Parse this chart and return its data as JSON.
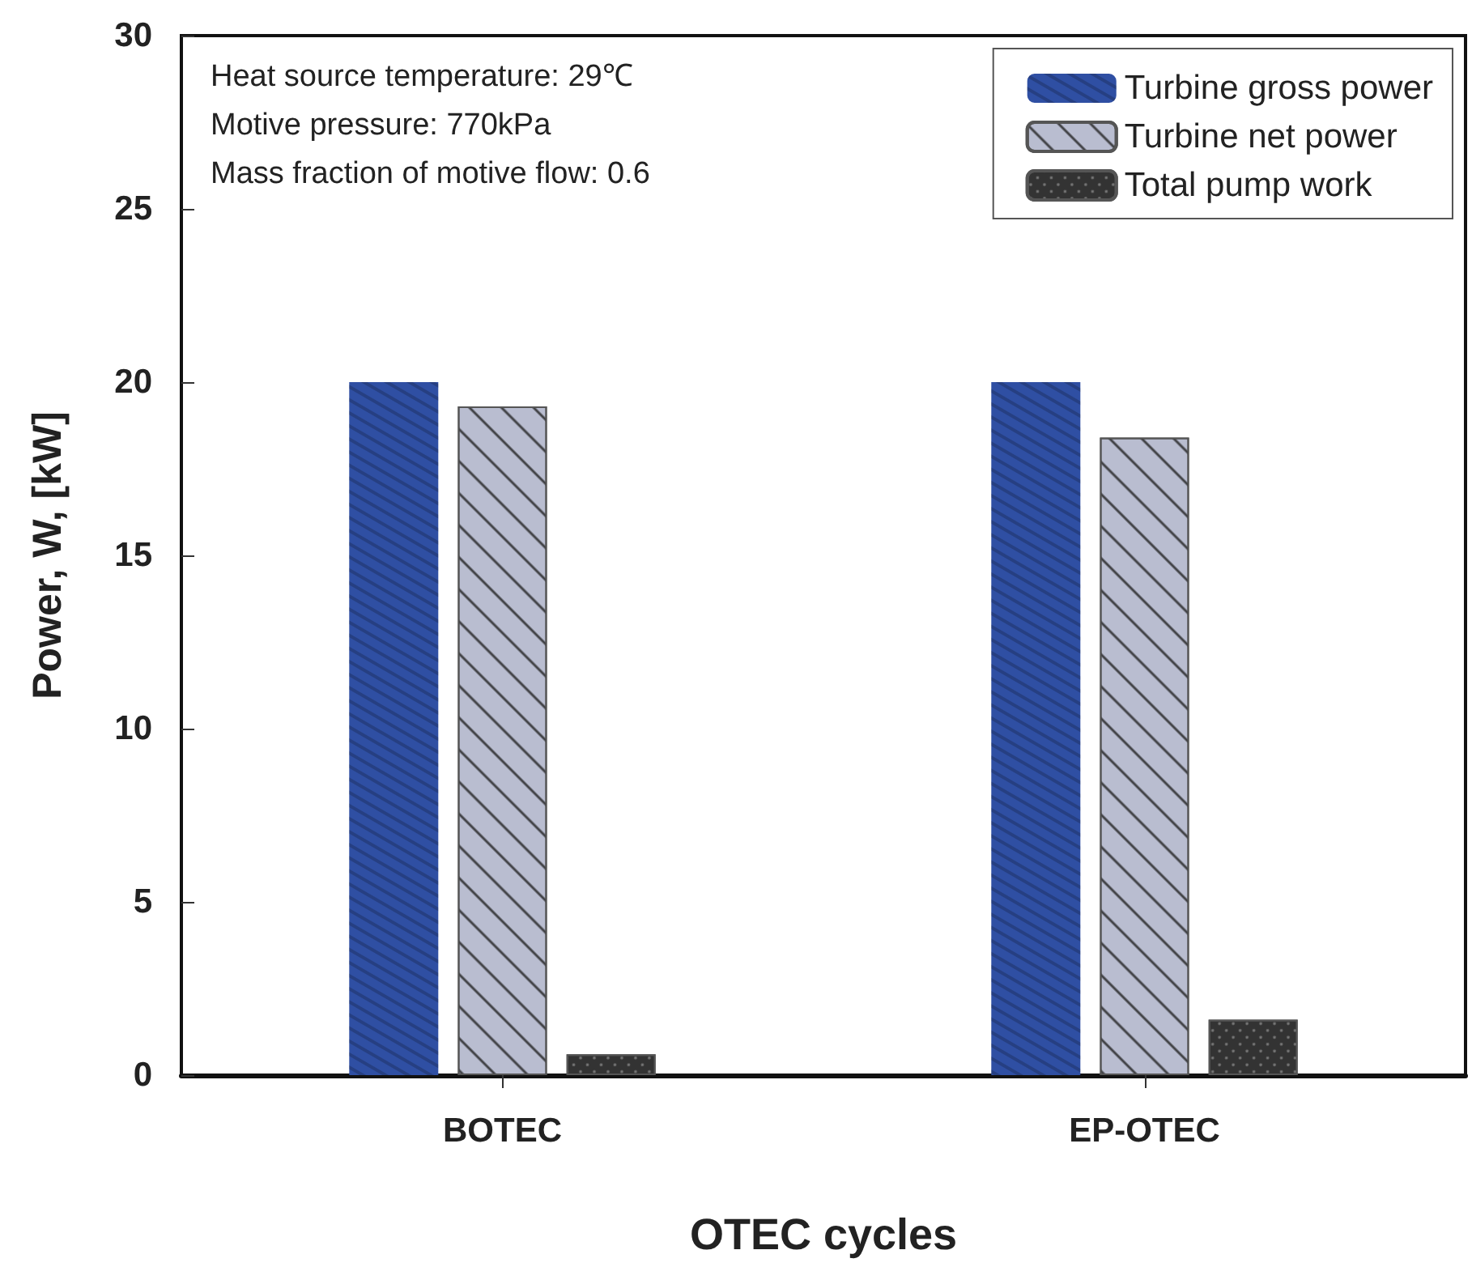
{
  "chart_data": {
    "type": "bar",
    "xlabel": "OTEC cycles",
    "ylabel": "Power, W, [kW]",
    "categories": [
      "BOTEC",
      "EP-OTEC"
    ],
    "series": [
      {
        "name": "Turbine gross power",
        "color": "#2f4fa3",
        "values": [
          20.0,
          20.0
        ]
      },
      {
        "name": "Turbine net power",
        "color": "#b9bdd0",
        "values": [
          19.3,
          18.4
        ]
      },
      {
        "name": "Total pump work",
        "color": "#333333",
        "values": [
          0.6,
          1.6
        ]
      }
    ],
    "ylim": [
      0,
      30
    ],
    "yticks": [
      0,
      5,
      10,
      15,
      20,
      25,
      30
    ],
    "grid": false,
    "legend": "top right",
    "annotations": [
      "Heat source temperature: 29℃",
      "Motive pressure: 770kPa",
      "Mass fraction of motive flow: 0.6"
    ]
  }
}
